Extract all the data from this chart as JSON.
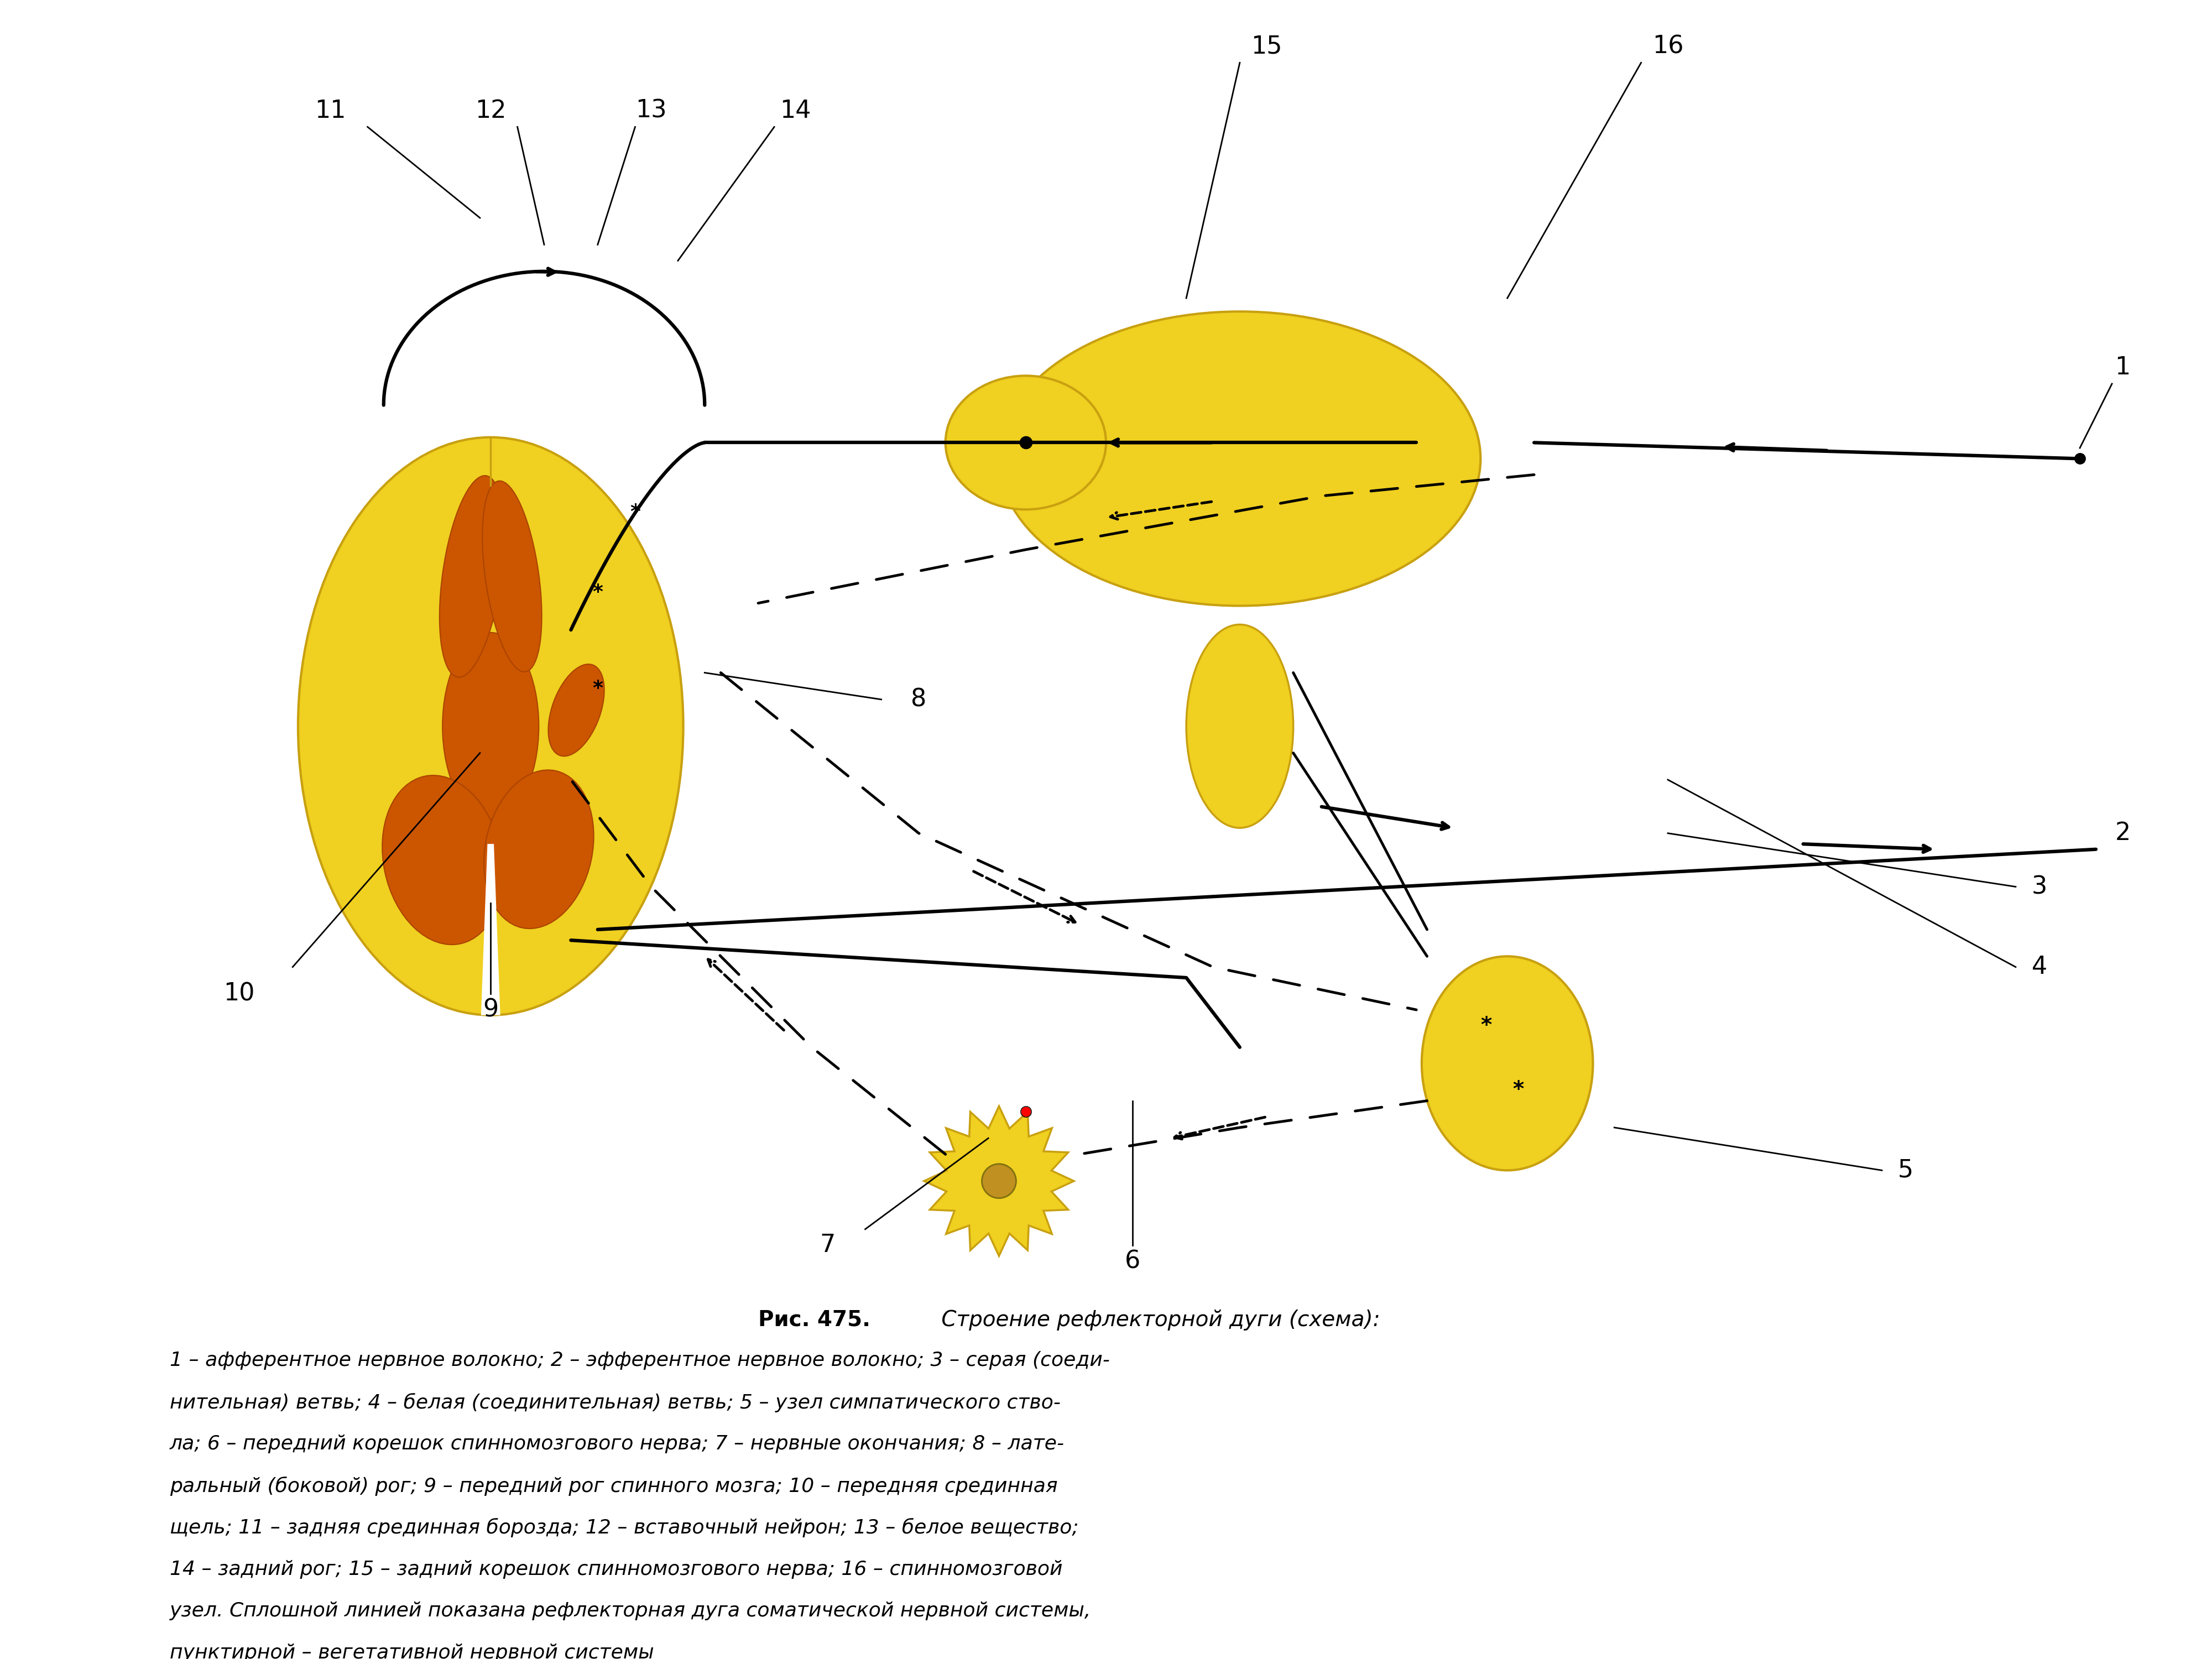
{
  "bg_color": "#ffffff",
  "title_bold": "Рис. 475.",
  "title_italic": " Строение рефлекторной дуги (схема):",
  "caption_lines": [
    "1 – афферентное нервное волокно; 2 – эфферентное нервное волокно; 3 – серая (соеди-",
    "нительная) ветвь; 4 – белая (соединительная) ветвь; 5 – узел симпатического ство-",
    "ла; 6 – передний корешок спинномозгового нерва; 7 – нервные окончания; 8 – лате-",
    "ральный (боковой) рог; 9 – передний рог спинного мозга; 10 – передняя срединная",
    "щель; 11 – задняя срединная борозда; 12 – вставочный нейрон; 13 – белое вещество;",
    "14 – задний рог; 15 – задний корешок спинномозгового нерва; 16 – спинномозговой",
    "узел. Сплошной линией показана рефлекторная дуга соматической нервной системы,",
    "пунктирной – вегетативной нервной системы"
  ],
  "label_fontsize": 32,
  "caption_fontsize": 26,
  "title_fontsize": 28,
  "yc": "#F0D020",
  "yd": "#C8A010",
  "gc": "#CC5500",
  "gd": "#AA4400"
}
